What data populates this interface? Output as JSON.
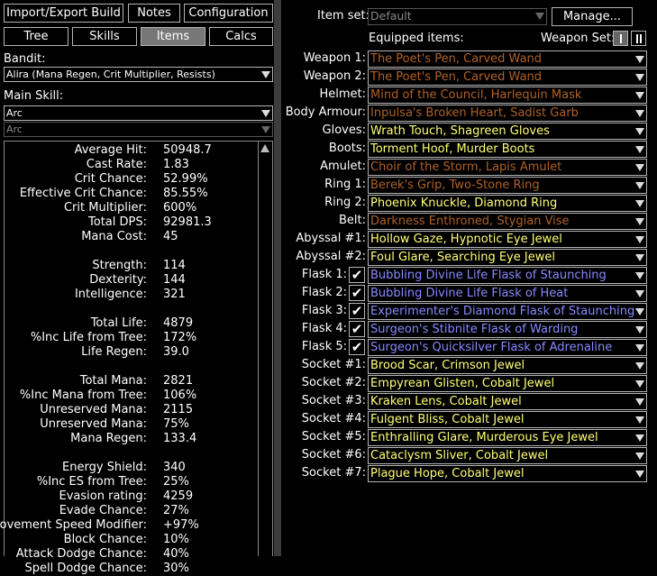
{
  "colors": {
    "unique": "#af6025",
    "rare": "#ffff77",
    "magic": "#8888ff",
    "normal": "#ffffff"
  },
  "toolbar": {
    "import_export": "Import/Export Build",
    "notes": "Notes",
    "configuration": "Configuration"
  },
  "tabs": {
    "tree": "Tree",
    "skills": "Skills",
    "items": "Items",
    "calcs": "Calcs",
    "active": "Items"
  },
  "bandit": {
    "label": "Bandit:",
    "value": "Alira (Mana Regen, Crit Multiplier, Resists)"
  },
  "main_skill": {
    "label": "Main Skill:",
    "value": "Arc",
    "sub_value": "Arc"
  },
  "stats": [
    {
      "k": "Average Hit:",
      "v": "50948.7"
    },
    {
      "k": "Cast Rate:",
      "v": "1.83"
    },
    {
      "k": "Crit Chance:",
      "v": "52.99%"
    },
    {
      "k": "Effective Crit Chance:",
      "v": "85.55%"
    },
    {
      "k": "Crit Multiplier:",
      "v": "600%"
    },
    {
      "k": "Total DPS:",
      "v": "92981.3"
    },
    {
      "k": "Mana Cost:",
      "v": "45"
    },
    {
      "k": "",
      "v": ""
    },
    {
      "k": "Strength:",
      "v": "114"
    },
    {
      "k": "Dexterity:",
      "v": "144"
    },
    {
      "k": "Intelligence:",
      "v": "321"
    },
    {
      "k": "",
      "v": ""
    },
    {
      "k": "Total Life:",
      "v": "4879"
    },
    {
      "k": "%Inc Life from Tree:",
      "v": "172%"
    },
    {
      "k": "Life Regen:",
      "v": "39.0"
    },
    {
      "k": "",
      "v": ""
    },
    {
      "k": "Total Mana:",
      "v": "2821"
    },
    {
      "k": "%Inc Mana from Tree:",
      "v": "106%"
    },
    {
      "k": "Unreserved Mana:",
      "v": "2115"
    },
    {
      "k": "Unreserved Mana:",
      "v": "75%"
    },
    {
      "k": "Mana Regen:",
      "v": "133.4"
    },
    {
      "k": "",
      "v": ""
    },
    {
      "k": "Energy Shield:",
      "v": "340"
    },
    {
      "k": "%Inc ES from Tree:",
      "v": "25%"
    },
    {
      "k": "Evasion rating:",
      "v": "4259"
    },
    {
      "k": "Evade Chance:",
      "v": "27%"
    },
    {
      "k": "Movement Speed Modifier:",
      "v": "+97%"
    },
    {
      "k": "Block Chance:",
      "v": "10%"
    },
    {
      "k": "Attack Dodge Chance:",
      "v": "40%"
    },
    {
      "k": "Spell Dodge Chance:",
      "v": "30%"
    }
  ],
  "item_set": {
    "label": "Item set:",
    "value": "Default",
    "manage": "Manage..."
  },
  "equipped_label": "Equipped items:",
  "weapon_set": {
    "label": "Weapon Set:",
    "active": 1
  },
  "slots": [
    {
      "slot": "Weapon 1:",
      "item": "The Poet's Pen, Carved Wand",
      "rarity": "unique"
    },
    {
      "slot": "Weapon 2:",
      "item": "The Poet's Pen, Carved Wand",
      "rarity": "unique"
    },
    {
      "slot": "Helmet:",
      "item": "Mind of the Council, Harlequin Mask",
      "rarity": "unique"
    },
    {
      "slot": "Body Armour:",
      "item": "Inpulsa's Broken Heart, Sadist Garb",
      "rarity": "unique"
    },
    {
      "slot": "Gloves:",
      "item": "Wrath Touch, Shagreen Gloves",
      "rarity": "rare"
    },
    {
      "slot": "Boots:",
      "item": "Torment Hoof, Murder Boots",
      "rarity": "rare"
    },
    {
      "slot": "Amulet:",
      "item": "Choir of the Storm, Lapis Amulet",
      "rarity": "unique"
    },
    {
      "slot": "Ring 1:",
      "item": "Berek's Grip, Two-Stone Ring",
      "rarity": "unique"
    },
    {
      "slot": "Ring 2:",
      "item": "Phoenix Knuckle, Diamond Ring",
      "rarity": "rare"
    },
    {
      "slot": "Belt:",
      "item": "Darkness Enthroned, Stygian Vise",
      "rarity": "unique"
    },
    {
      "slot": "Abyssal #1:",
      "item": "Hollow Gaze, Hypnotic Eye Jewel",
      "rarity": "rare"
    },
    {
      "slot": "Abyssal #2:",
      "item": "Foul Glare, Searching Eye Jewel",
      "rarity": "rare"
    },
    {
      "slot": "Flask 1:",
      "item": "Bubbling Divine Life Flask of Staunching",
      "rarity": "magic",
      "checked": true
    },
    {
      "slot": "Flask 2:",
      "item": "Bubbling Divine Life Flask of Heat",
      "rarity": "magic",
      "checked": true
    },
    {
      "slot": "Flask 3:",
      "item": "Experimenter's Diamond Flask of Staunching",
      "rarity": "magic",
      "checked": true
    },
    {
      "slot": "Flask 4:",
      "item": "Surgeon's Stibnite Flask of Warding",
      "rarity": "magic",
      "checked": true
    },
    {
      "slot": "Flask 5:",
      "item": "Surgeon's Quicksilver Flask of Adrenaline",
      "rarity": "magic",
      "checked": true
    },
    {
      "slot": "Socket #1:",
      "item": "Brood Scar, Crimson Jewel",
      "rarity": "rare"
    },
    {
      "slot": "Socket #2:",
      "item": "Empyrean Glisten, Cobalt Jewel",
      "rarity": "rare"
    },
    {
      "slot": "Socket #3:",
      "item": "Kraken Lens, Cobalt Jewel",
      "rarity": "rare"
    },
    {
      "slot": "Socket #4:",
      "item": "Fulgent Bliss, Cobalt Jewel",
      "rarity": "rare"
    },
    {
      "slot": "Socket #5:",
      "item": "Enthralling Glare, Murderous Eye Jewel",
      "rarity": "rare"
    },
    {
      "slot": "Socket #6:",
      "item": "Cataclysm Sliver, Cobalt Jewel",
      "rarity": "rare"
    },
    {
      "slot": "Socket #7:",
      "item": "Plague Hope, Cobalt Jewel",
      "rarity": "rare"
    }
  ]
}
